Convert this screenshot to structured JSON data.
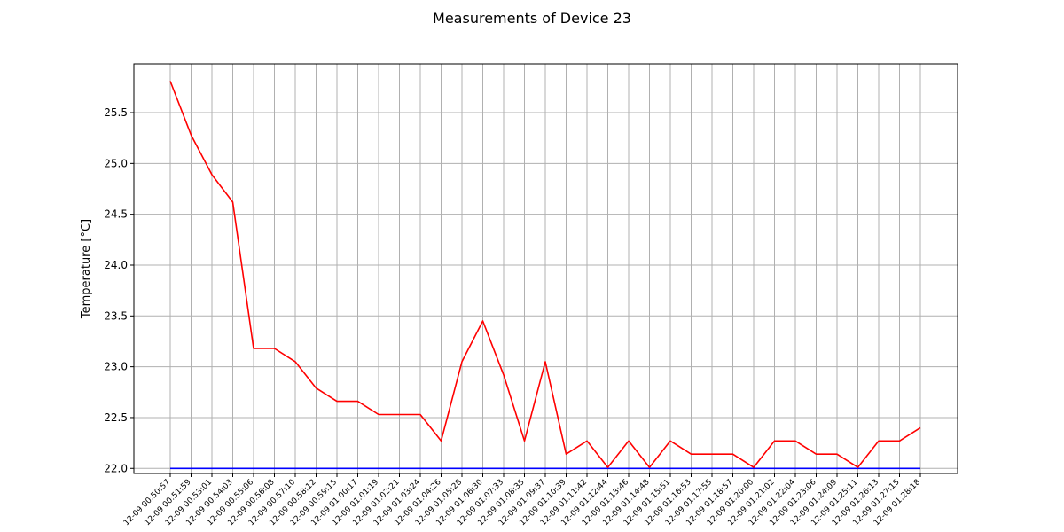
{
  "chart_data": {
    "type": "line",
    "title": "Measurements of Device 23",
    "xlabel": "",
    "ylabel": "Temperature [°C]",
    "ylim": [
      21.95,
      25.98
    ],
    "yticks": [
      "22.0",
      "22.5",
      "23.0",
      "23.5",
      "24.0",
      "24.5",
      "25.0",
      "25.5"
    ],
    "grid": true,
    "x": [
      "12-09 00:50:57",
      "12-09 00:51:59",
      "12-09 00:53:01",
      "12-09 00:54:03",
      "12-09 00:55:06",
      "12-09 00:56:08",
      "12-09 00:57:10",
      "12-09 00:58:12",
      "12-09 00:59:15",
      "12-09 01:00:17",
      "12-09 01:01:19",
      "12-09 01:02:21",
      "12-09 01:03:24",
      "12-09 01:04:26",
      "12-09 01:05:28",
      "12-09 01:06:30",
      "12-09 01:07:33",
      "12-09 01:08:35",
      "12-09 01:09:37",
      "12-09 01:10:39",
      "12-09 01:11:42",
      "12-09 01:12:44",
      "12-09 01:13:46",
      "12-09 01:14:48",
      "12-09 01:15:51",
      "12-09 01:16:53",
      "12-09 01:17:55",
      "12-09 01:18:57",
      "12-09 01:20:00",
      "12-09 01:21:02",
      "12-09 01:22:04",
      "12-09 01:23:06",
      "12-09 01:24:09",
      "12-09 01:25:11",
      "12-09 01:26:13",
      "12-09 01:27:15",
      "12-09 01:28:18"
    ],
    "series": [
      {
        "color": "#ff0000",
        "values": [
          25.81,
          25.28,
          24.89,
          24.62,
          23.18,
          23.18,
          23.05,
          22.79,
          22.66,
          22.66,
          22.53,
          22.53,
          22.53,
          22.27,
          23.05,
          23.45,
          22.92,
          22.27,
          23.05,
          22.14,
          22.27,
          22.01,
          22.27,
          22.01,
          22.27,
          22.14,
          22.14,
          22.14,
          22.01,
          22.27,
          22.27,
          22.14,
          22.14,
          22.01,
          22.27,
          22.27,
          22.4
        ]
      },
      {
        "color": "#0000ff",
        "values": [
          22.0,
          22.0,
          22.0,
          22.0,
          22.0,
          22.0,
          22.0,
          22.0,
          22.0,
          22.0,
          22.0,
          22.0,
          22.0,
          22.0,
          22.0,
          22.0,
          22.0,
          22.0,
          22.0,
          22.0,
          22.0,
          22.0,
          22.0,
          22.0,
          22.0,
          22.0,
          22.0,
          22.0,
          22.0,
          22.0,
          22.0,
          22.0,
          22.0,
          22.0,
          22.0,
          22.0,
          22.0
        ]
      }
    ]
  }
}
